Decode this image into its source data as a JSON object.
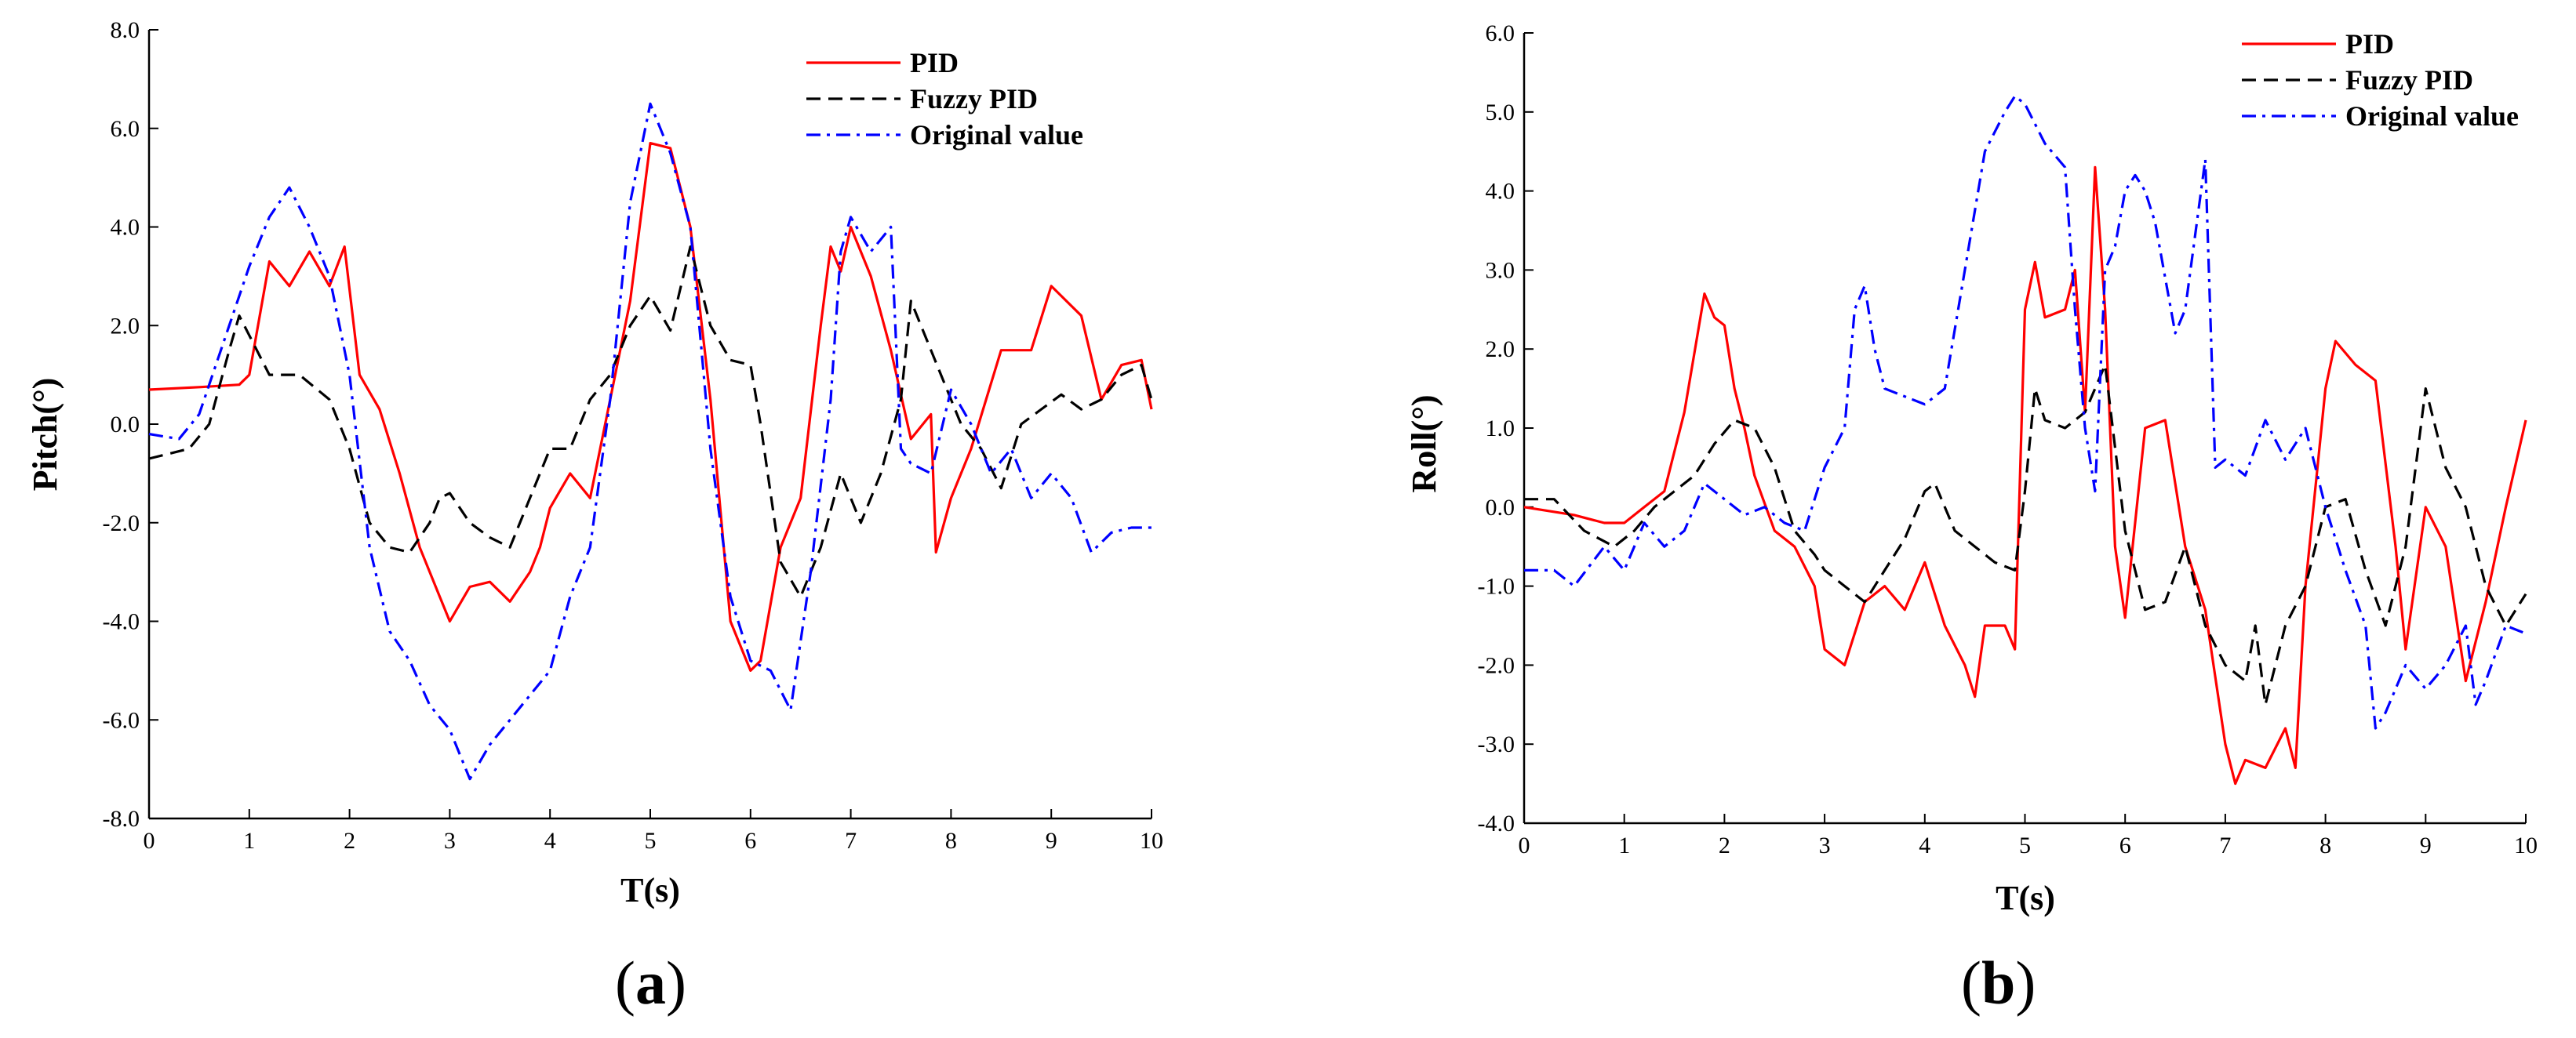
{
  "chart_data": [
    {
      "type": "line",
      "panel_label": "a",
      "xlabel": "T(s)",
      "ylabel": "Pitch(°)",
      "xlim": [
        0,
        10
      ],
      "ylim": [
        -8,
        8
      ],
      "xticks": [
        "0",
        "1",
        "2",
        "3",
        "4",
        "5",
        "6",
        "7",
        "8",
        "9",
        "10"
      ],
      "yticks": [
        "-8.0",
        "-6.0",
        "-4.0",
        "-2.0",
        "0.0",
        "2.0",
        "4.0",
        "6.0",
        "8.0"
      ],
      "legend_position": "top-right",
      "series": [
        {
          "name": "PID",
          "color": "#ff0000",
          "dash": "solid",
          "x": [
            0,
            0.5,
            0.9,
            1.0,
            1.2,
            1.4,
            1.6,
            1.8,
            1.95,
            2.1,
            2.3,
            2.5,
            2.7,
            2.9,
            3.0,
            3.2,
            3.4,
            3.6,
            3.8,
            3.9,
            4.0,
            4.2,
            4.4,
            4.6,
            4.8,
            5.0,
            5.2,
            5.4,
            5.6,
            5.8,
            6.0,
            6.1,
            6.3,
            6.5,
            6.7,
            6.8,
            6.9,
            7.0,
            7.2,
            7.4,
            7.6,
            7.8,
            7.85,
            8.0,
            8.2,
            8.5,
            8.8,
            9.0,
            9.1,
            9.3,
            9.5,
            9.7,
            9.9,
            10.0
          ],
          "y": [
            0.7,
            0.75,
            0.8,
            1.0,
            3.3,
            2.8,
            3.5,
            2.8,
            3.6,
            1.0,
            0.3,
            -1.0,
            -2.5,
            -3.5,
            -4.0,
            -3.3,
            -3.2,
            -3.6,
            -3.0,
            -2.5,
            -1.7,
            -1.0,
            -1.5,
            0.5,
            2.5,
            5.7,
            5.6,
            4.0,
            0.5,
            -4.0,
            -5.0,
            -4.8,
            -2.5,
            -1.5,
            2.0,
            3.6,
            3.1,
            4.0,
            3.0,
            1.5,
            -0.3,
            0.2,
            -2.6,
            -1.5,
            -0.5,
            1.5,
            1.5,
            2.8,
            2.6,
            2.2,
            0.5,
            1.2,
            1.3,
            0.3
          ]
        },
        {
          "name": "Fuzzy PID",
          "color": "#000000",
          "dash": "dashed",
          "x": [
            0,
            0.4,
            0.6,
            0.8,
            0.9,
            1.0,
            1.2,
            1.5,
            1.8,
            2.0,
            2.2,
            2.4,
            2.6,
            2.8,
            2.9,
            3.0,
            3.2,
            3.4,
            3.6,
            3.8,
            4.0,
            4.2,
            4.4,
            4.6,
            4.8,
            5.0,
            5.2,
            5.4,
            5.6,
            5.8,
            6.0,
            6.1,
            6.3,
            6.5,
            6.7,
            6.9,
            7.1,
            7.3,
            7.5,
            7.6,
            7.7,
            7.9,
            8.1,
            8.3,
            8.5,
            8.7,
            8.9,
            9.1,
            9.3,
            9.5,
            9.7,
            9.9,
            10.0
          ],
          "y": [
            -0.7,
            -0.5,
            0.0,
            1.5,
            2.2,
            1.8,
            1.0,
            1.0,
            0.5,
            -0.5,
            -2.0,
            -2.5,
            -2.6,
            -2.0,
            -1.5,
            -1.4,
            -2.0,
            -2.3,
            -2.5,
            -1.5,
            -0.5,
            -0.5,
            0.5,
            1.0,
            2.0,
            2.6,
            1.9,
            3.6,
            2.0,
            1.3,
            1.2,
            0.0,
            -2.8,
            -3.5,
            -2.5,
            -1.0,
            -2.0,
            -1.0,
            0.5,
            2.5,
            2.0,
            1.0,
            0.0,
            -0.5,
            -1.3,
            0.0,
            0.3,
            0.6,
            0.3,
            0.5,
            1.0,
            1.2,
            0.5
          ]
        },
        {
          "name": "Original value",
          "color": "#0000ff",
          "dash": "dashdot",
          "x": [
            0,
            0.3,
            0.5,
            0.8,
            1.0,
            1.2,
            1.4,
            1.6,
            1.8,
            2.0,
            2.2,
            2.4,
            2.6,
            2.8,
            3.0,
            3.2,
            3.4,
            3.6,
            3.8,
            4.0,
            4.2,
            4.4,
            4.6,
            4.8,
            5.0,
            5.2,
            5.4,
            5.6,
            5.8,
            6.0,
            6.2,
            6.4,
            6.6,
            6.8,
            6.9,
            7.0,
            7.2,
            7.4,
            7.5,
            7.6,
            7.8,
            8.0,
            8.2,
            8.4,
            8.6,
            8.8,
            9.0,
            9.2,
            9.4,
            9.6,
            9.8,
            10.0
          ],
          "y": [
            -0.2,
            -0.3,
            0.2,
            2.0,
            3.2,
            4.2,
            4.8,
            4.0,
            3.0,
            1.0,
            -2.5,
            -4.2,
            -4.8,
            -5.7,
            -6.2,
            -7.2,
            -6.5,
            -6.0,
            -5.5,
            -5.0,
            -3.5,
            -2.5,
            0.5,
            4.5,
            6.5,
            5.5,
            4.0,
            -0.5,
            -3.5,
            -4.8,
            -5.0,
            -5.8,
            -3.0,
            0.5,
            3.5,
            4.2,
            3.5,
            4.0,
            -0.5,
            -0.8,
            -1.0,
            0.7,
            0.0,
            -1.0,
            -0.5,
            -1.5,
            -1.0,
            -1.5,
            -2.6,
            -2.2,
            -2.1,
            -2.1
          ]
        }
      ]
    },
    {
      "type": "line",
      "panel_label": "b",
      "xlabel": "T(s)",
      "ylabel": "Roll(°)",
      "xlim": [
        0,
        10
      ],
      "ylim": [
        -4,
        6
      ],
      "xticks": [
        "0",
        "1",
        "2",
        "3",
        "4",
        "5",
        "6",
        "7",
        "8",
        "9",
        "10"
      ],
      "yticks": [
        "-4.0",
        "-3.0",
        "-2.0",
        "-1.0",
        "0.0",
        "1.0",
        "2.0",
        "3.0",
        "4.0",
        "5.0",
        "6.0"
      ],
      "legend_position": "top-right",
      "series": [
        {
          "name": "PID",
          "color": "#ff0000",
          "dash": "solid",
          "x": [
            0,
            0.5,
            0.8,
            1.0,
            1.2,
            1.4,
            1.6,
            1.8,
            1.9,
            2.0,
            2.1,
            2.2,
            2.3,
            2.5,
            2.7,
            2.9,
            3.0,
            3.2,
            3.4,
            3.6,
            3.8,
            4.0,
            4.2,
            4.4,
            4.5,
            4.6,
            4.8,
            4.9,
            5.0,
            5.1,
            5.2,
            5.4,
            5.5,
            5.6,
            5.7,
            5.8,
            5.9,
            6.0,
            6.2,
            6.4,
            6.6,
            6.8,
            7.0,
            7.1,
            7.2,
            7.4,
            7.6,
            7.7,
            7.8,
            8.0,
            8.1,
            8.3,
            8.5,
            8.7,
            8.8,
            9.0,
            9.2,
            9.4,
            9.6,
            9.8,
            10.0
          ],
          "y": [
            0.0,
            -0.1,
            -0.2,
            -0.2,
            0.0,
            0.2,
            1.2,
            2.7,
            2.4,
            2.3,
            1.5,
            1.0,
            0.4,
            -0.3,
            -0.5,
            -1.0,
            -1.8,
            -2.0,
            -1.2,
            -1.0,
            -1.3,
            -0.7,
            -1.5,
            -2.0,
            -2.4,
            -1.5,
            -1.5,
            -1.8,
            2.5,
            3.1,
            2.4,
            2.5,
            3.0,
            1.2,
            4.3,
            2.5,
            -0.5,
            -1.4,
            1.0,
            1.1,
            -0.5,
            -1.3,
            -3.0,
            -3.5,
            -3.2,
            -3.3,
            -2.8,
            -3.3,
            -1.0,
            1.5,
            2.1,
            1.8,
            1.6,
            -0.5,
            -1.8,
            0.0,
            -0.5,
            -2.2,
            -1.2,
            0.0,
            1.1
          ]
        },
        {
          "name": "Fuzzy PID",
          "color": "#000000",
          "dash": "dashed",
          "x": [
            0,
            0.3,
            0.6,
            0.9,
            1.1,
            1.3,
            1.5,
            1.7,
            1.9,
            2.1,
            2.3,
            2.5,
            2.7,
            2.9,
            3.0,
            3.2,
            3.4,
            3.6,
            3.8,
            4.0,
            4.1,
            4.3,
            4.5,
            4.7,
            4.9,
            5.0,
            5.1,
            5.2,
            5.4,
            5.6,
            5.8,
            6.0,
            6.2,
            6.4,
            6.6,
            6.8,
            7.0,
            7.2,
            7.3,
            7.4,
            7.6,
            7.8,
            8.0,
            8.2,
            8.4,
            8.6,
            8.8,
            9.0,
            9.2,
            9.4,
            9.6,
            9.8,
            10.0
          ],
          "y": [
            0.1,
            0.1,
            -0.3,
            -0.5,
            -0.3,
            0.0,
            0.2,
            0.4,
            0.8,
            1.1,
            1.0,
            0.5,
            -0.3,
            -0.6,
            -0.8,
            -1.0,
            -1.2,
            -0.8,
            -0.4,
            0.2,
            0.3,
            -0.3,
            -0.5,
            -0.7,
            -0.8,
            0.2,
            1.5,
            1.1,
            1.0,
            1.2,
            1.8,
            -0.3,
            -1.3,
            -1.2,
            -0.5,
            -1.5,
            -2.0,
            -2.2,
            -1.5,
            -2.5,
            -1.5,
            -1.0,
            0.0,
            0.1,
            -0.8,
            -1.5,
            -0.5,
            1.5,
            0.5,
            0.0,
            -1.0,
            -1.5,
            -1.1
          ]
        },
        {
          "name": "Original value",
          "color": "#0000ff",
          "dash": "dashdot",
          "x": [
            0,
            0.3,
            0.5,
            0.8,
            1.0,
            1.2,
            1.4,
            1.6,
            1.8,
            2.0,
            2.2,
            2.4,
            2.6,
            2.8,
            3.0,
            3.2,
            3.3,
            3.4,
            3.5,
            3.6,
            3.8,
            4.0,
            4.2,
            4.4,
            4.6,
            4.8,
            4.9,
            5.0,
            5.2,
            5.4,
            5.5,
            5.6,
            5.7,
            5.8,
            5.9,
            6.0,
            6.1,
            6.2,
            6.3,
            6.5,
            6.6,
            6.8,
            6.9,
            7.0,
            7.2,
            7.4,
            7.6,
            7.8,
            8.0,
            8.2,
            8.4,
            8.5,
            8.6,
            8.8,
            9.0,
            9.2,
            9.4,
            9.5,
            9.6,
            9.8,
            10.0
          ],
          "y": [
            -0.8,
            -0.8,
            -1.0,
            -0.5,
            -0.8,
            -0.2,
            -0.5,
            -0.3,
            0.3,
            0.1,
            -0.1,
            0.0,
            -0.2,
            -0.3,
            0.5,
            1.0,
            2.5,
            2.8,
            2.0,
            1.5,
            1.4,
            1.3,
            1.5,
            3.0,
            4.5,
            5.0,
            5.2,
            5.1,
            4.6,
            4.3,
            2.5,
            1.0,
            0.2,
            3.0,
            3.3,
            4.0,
            4.2,
            4.0,
            3.6,
            2.2,
            2.5,
            4.4,
            0.5,
            0.6,
            0.4,
            1.1,
            0.6,
            1.0,
            0.0,
            -0.8,
            -1.5,
            -2.8,
            -2.6,
            -2.0,
            -2.3,
            -2.0,
            -1.5,
            -2.5,
            -2.2,
            -1.5,
            -1.6
          ]
        }
      ]
    }
  ]
}
